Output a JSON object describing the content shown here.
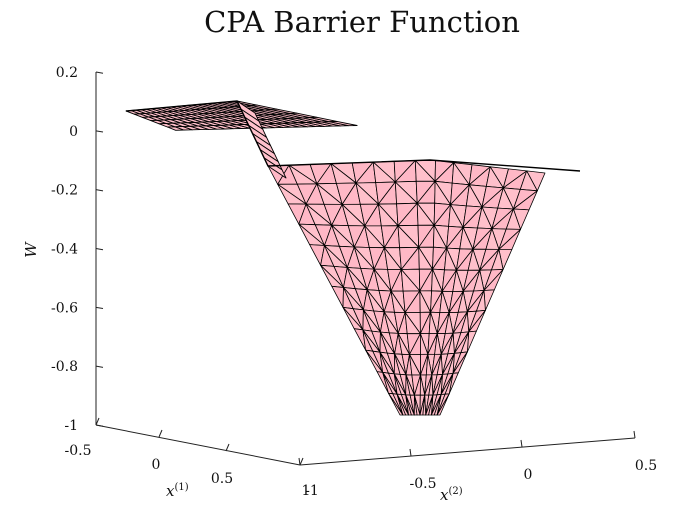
{
  "chart_data": {
    "type": "surface",
    "title": "CPA Barrier Function",
    "zlabel": "W",
    "xlabel": {
      "base": "x",
      "sup": "(1)"
    },
    "ylabel": {
      "base": "x",
      "sup": "(2)"
    },
    "zlim": [
      -1,
      0.2
    ],
    "xlim": [
      -1,
      0.5
    ],
    "ylim": [
      -1,
      0.5
    ],
    "z_ticks": [
      "0.2",
      "0",
      "-0.2",
      "-0.4",
      "-0.6",
      "-0.8",
      "-1"
    ],
    "x_ticks": [
      "-0.5",
      "0",
      "0.5",
      "1"
    ],
    "y_ticks": [
      "-1",
      "-0.5",
      "0",
      "0.5"
    ],
    "grid": false,
    "face_color": "#ffc0cb",
    "edge_color": "#000000",
    "surface": {
      "description_points": [
        {
          "x1": -1.0,
          "x2": -1.0,
          "W": 0.07
        },
        {
          "x1": -0.6,
          "x2": -1.0,
          "W": 0.1
        },
        {
          "x1": 0.0,
          "x2": -0.5,
          "W": -0.58
        },
        {
          "x1": 0.1,
          "x2": -0.45,
          "W": -0.96
        },
        {
          "x1": 0.5,
          "x2": 0.5,
          "W": -0.13
        },
        {
          "x1": 0.5,
          "x2": -1.0,
          "W": -0.1
        }
      ]
    }
  }
}
